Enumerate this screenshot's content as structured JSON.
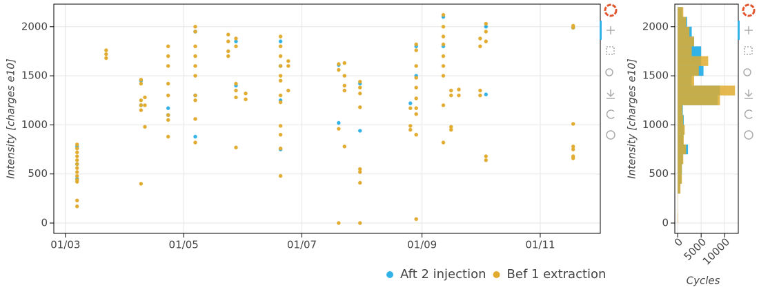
{
  "chart_data": [
    {
      "type": "scatter",
      "ylabel": "Intensity [charges e10]",
      "xlim": [
        "23/02",
        "02/12"
      ],
      "xticks": [
        "01/03",
        "01/05",
        "01/07",
        "01/09",
        "01/11"
      ],
      "ylim": [
        -105,
        2230
      ],
      "yticks": [
        0,
        500,
        1000,
        1500,
        2000
      ],
      "grid": true,
      "legend": "below",
      "series": [
        {
          "name": "Aft 2 injection",
          "color": "#33b2e8",
          "x": [
            "07/03",
            "07/03",
            "07/03",
            "09/04",
            "09/04",
            "23/04",
            "23/04",
            "07/05",
            "07/05",
            "07/05",
            "28/05",
            "28/05",
            "20/06",
            "20/06",
            "20/06",
            "20/06",
            "20/07",
            "20/07",
            "31/07",
            "31/07",
            "26/08",
            "29/08",
            "29/08",
            "12/09",
            "12/09",
            "04/10",
            "04/10",
            "18/11"
          ],
          "values": [
            780,
            600,
            450,
            1450,
            1200,
            1170,
            1100,
            1950,
            1300,
            880,
            1850,
            1400,
            1850,
            1600,
            1250,
            750,
            1610,
            1020,
            1420,
            940,
            1220,
            1800,
            1500,
            2100,
            1800,
            2000,
            1310,
            1990
          ]
        },
        {
          "name": "Bef 1 extraction",
          "color": "#e1ab30",
          "x": [
            "07/03",
            "07/03",
            "07/03",
            "07/03",
            "07/03",
            "07/03",
            "07/03",
            "07/03",
            "07/03",
            "07/03",
            "07/03",
            "07/03",
            "07/03",
            "22/03",
            "22/03",
            "22/03",
            "09/04",
            "09/04",
            "09/04",
            "09/04",
            "09/04",
            "09/04",
            "11/04",
            "11/04",
            "11/04",
            "23/04",
            "23/04",
            "23/04",
            "23/04",
            "23/04",
            "23/04",
            "23/04",
            "23/04",
            "07/05",
            "07/05",
            "07/05",
            "07/05",
            "07/05",
            "07/05",
            "07/05",
            "07/05",
            "07/05",
            "07/05",
            "24/05",
            "24/05",
            "24/05",
            "24/05",
            "28/05",
            "28/05",
            "28/05",
            "28/05",
            "28/05",
            "28/05",
            "02/06",
            "02/06",
            "20/06",
            "20/06",
            "20/06",
            "20/06",
            "20/06",
            "20/06",
            "20/06",
            "20/06",
            "20/06",
            "20/06",
            "20/06",
            "20/06",
            "24/06",
            "24/06",
            "24/06",
            "20/07",
            "20/07",
            "20/07",
            "20/07",
            "23/07",
            "23/07",
            "23/07",
            "23/07",
            "23/07",
            "31/07",
            "31/07",
            "31/07",
            "31/07",
            "31/07",
            "31/07",
            "31/07",
            "31/07",
            "26/08",
            "26/08",
            "26/08",
            "29/08",
            "29/08",
            "29/08",
            "29/08",
            "29/08",
            "29/08",
            "29/08",
            "29/08",
            "29/08",
            "29/08",
            "12/09",
            "12/09",
            "12/09",
            "12/09",
            "12/09",
            "12/09",
            "12/09",
            "12/09",
            "12/09",
            "16/09",
            "16/09",
            "16/09",
            "16/09",
            "20/09",
            "20/09",
            "01/10",
            "01/10",
            "01/10",
            "01/10",
            "04/10",
            "04/10",
            "04/10",
            "04/10",
            "04/10",
            "18/11",
            "18/11",
            "18/11",
            "18/11",
            "18/11",
            "18/11",
            "18/11"
          ],
          "values": [
            800,
            760,
            720,
            680,
            640,
            600,
            560,
            520,
            480,
            440,
            420,
            230,
            170,
            1760,
            1720,
            1680,
            1460,
            1420,
            1250,
            1200,
            1150,
            400,
            1280,
            1200,
            980,
            1800,
            1700,
            1600,
            1420,
            1300,
            1100,
            1050,
            880,
            2000,
            1950,
            1800,
            1700,
            1600,
            1500,
            1300,
            1250,
            1060,
            820,
            1920,
            1850,
            1750,
            1700,
            1880,
            1800,
            1420,
            1350,
            1280,
            770,
            1320,
            1260,
            1900,
            1800,
            1700,
            1600,
            1500,
            1450,
            1300,
            1230,
            990,
            900,
            760,
            480,
            1650,
            1600,
            1350,
            1620,
            1560,
            960,
            0,
            1630,
            1500,
            1400,
            1350,
            780,
            1440,
            1380,
            1320,
            1180,
            550,
            520,
            410,
            0,
            1170,
            990,
            950,
            1820,
            1760,
            1600,
            1480,
            1380,
            1270,
            1170,
            1110,
            900,
            40,
            2120,
            2000,
            1900,
            1820,
            1700,
            1600,
            1500,
            1200,
            820,
            1350,
            1300,
            980,
            950,
            1360,
            1300,
            1880,
            1800,
            1350,
            1300,
            2030,
            1950,
            1850,
            680,
            640,
            2010,
            1990,
            1010,
            780,
            750,
            680,
            660
          ]
        }
      ]
    },
    {
      "type": "histogram",
      "orientation": "horizontal",
      "xlabel": "Cycles",
      "ylabel": "Intensity [charges e10]",
      "xlim": [
        -600,
        12900
      ],
      "xticks": [
        0,
        5000,
        10000
      ],
      "ylim": [
        -105,
        2230
      ],
      "yticks": [
        0,
        500,
        1000,
        1500,
        2000
      ],
      "grid": true,
      "bins": [
        0,
        100,
        200,
        300,
        400,
        500,
        600,
        700,
        800,
        900,
        1000,
        1100,
        1200,
        1300,
        1400,
        1500,
        1600,
        1700,
        1800,
        1900,
        2000,
        2100,
        2200
      ],
      "series": [
        {
          "name": "Aft 2 injection",
          "color": "#33b2e8",
          "values": [
            0,
            0,
            0,
            500,
            800,
            900,
            1100,
            2200,
            1200,
            1400,
            1300,
            1100,
            8500,
            9000,
            3000,
            5500,
            5000,
            5000,
            3500,
            3000,
            2000,
            1000
          ]
        },
        {
          "name": "Bef 1 extraction",
          "color": "#e1ab30",
          "values": [
            100,
            50,
            50,
            600,
            900,
            900,
            1200,
            1800,
            1300,
            1500,
            1200,
            1000,
            9000,
            12200,
            3500,
            4500,
            6500,
            3000,
            3500,
            2500,
            1800,
            1200
          ]
        }
      ]
    }
  ]
}
